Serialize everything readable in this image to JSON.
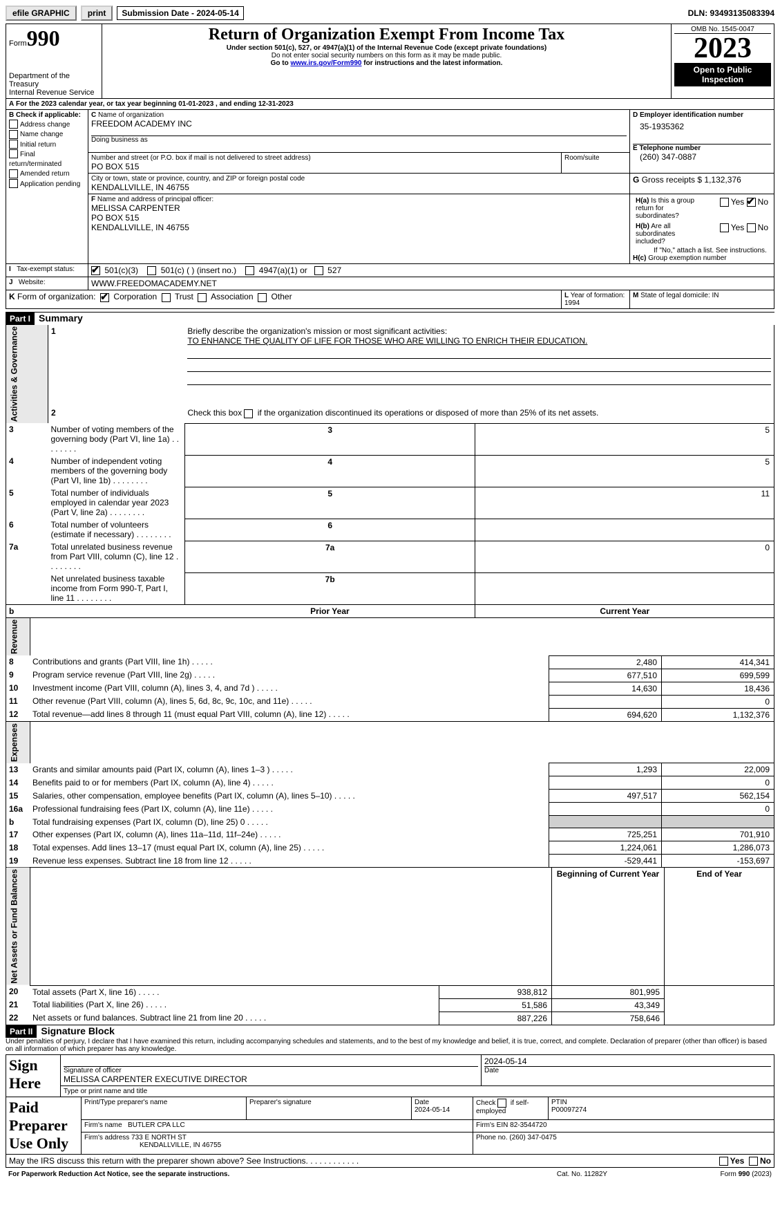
{
  "toolbar": {
    "efile": "efile GRAPHIC",
    "print": "print",
    "subdate_label": "Submission Date - 2024-05-14",
    "dln": "DLN: 93493135083394"
  },
  "header": {
    "form_label": "Form",
    "form_num": "990",
    "dept": "Department of the Treasury\nInternal Revenue Service",
    "title": "Return of Organization Exempt From Income Tax",
    "sub1": "Under section 501(c), 527, or 4947(a)(1) of the Internal Revenue Code (except private foundations)",
    "sub2": "Do not enter social security numbers on this form as it may be made public.",
    "sub3_pre": "Go to ",
    "sub3_link": "www.irs.gov/Form990",
    "sub3_post": " for instructions and the latest information.",
    "omb": "OMB No. 1545-0047",
    "year": "2023",
    "open": "Open to Public Inspection"
  },
  "A": {
    "line": "For the 2023 calendar year, or tax year beginning 01-01-2023    , and ending 12-31-2023"
  },
  "B": {
    "label": "Check if applicable:",
    "opts": [
      "Address change",
      "Name change",
      "Initial return",
      "Final return/terminated",
      "Amended return",
      "Application pending"
    ]
  },
  "C": {
    "name_label": "Name of organization",
    "name": "FREEDOM ACADEMY INC",
    "dba_label": "Doing business as",
    "addr_label": "Number and street (or P.O. box if mail is not delivered to street address)",
    "room_label": "Room/suite",
    "addr": "PO BOX 515",
    "city_label": "City or town, state or province, country, and ZIP or foreign postal code",
    "city": "KENDALLVILLE, IN  46755"
  },
  "D": {
    "label": "Employer identification number",
    "val": "35-1935362"
  },
  "E": {
    "label": "Telephone number",
    "val": "(260) 347-0887"
  },
  "G": {
    "label": "Gross receipts $",
    "val": "1,132,376"
  },
  "F": {
    "label": "Name and address of principal officer:",
    "name": "MELISSA CARPENTER",
    "l1": "PO BOX 515",
    "l2": "KENDALLVILLE, IN   46755"
  },
  "H": {
    "a": "Is this a group return for subordinates?",
    "b": "Are all subordinates included?",
    "b_note": "If \"No,\" attach a list. See instructions.",
    "c": "Group exemption number",
    "yes": "Yes",
    "no": "No"
  },
  "I": {
    "label": "Tax-exempt status:",
    "o1": "501(c)(3)",
    "o2": "501(c) (  ) (insert no.)",
    "o3": "4947(a)(1) or",
    "o4": "527"
  },
  "J": {
    "label": "Website:",
    "val": "WWW.FREEDOMACADEMY.NET"
  },
  "K": {
    "label": "Form of organization:",
    "o1": "Corporation",
    "o2": "Trust",
    "o3": "Association",
    "o4": "Other"
  },
  "L": {
    "label": "Year of formation: 1994"
  },
  "M": {
    "label": "State of legal domicile: IN"
  },
  "part1": {
    "hdr": "Part I",
    "title": "Summary",
    "l1": "Briefly describe the organization's mission or most significant activities:",
    "l1v": "TO ENHANCE THE QUALITY OF LIFE FOR THOSE WHO ARE WILLING TO ENRICH THEIR EDUCATION.",
    "l2": "Check this box         if the organization discontinued its operations or disposed of more than 25% of its net assets.",
    "rows": [
      {
        "n": "3",
        "t": "Number of voting members of the governing body (Part VI, line 1a)",
        "r": "3",
        "v": "5"
      },
      {
        "n": "4",
        "t": "Number of independent voting members of the governing body (Part VI, line 1b)",
        "r": "4",
        "v": "5"
      },
      {
        "n": "5",
        "t": "Total number of individuals employed in calendar year 2023 (Part V, line 2a)",
        "r": "5",
        "v": "11"
      },
      {
        "n": "6",
        "t": "Total number of volunteers (estimate if necessary)",
        "r": "6",
        "v": ""
      },
      {
        "n": "7a",
        "t": "Total unrelated business revenue from Part VIII, column (C), line 12",
        "r": "7a",
        "v": "0"
      },
      {
        "n": "",
        "t": "Net unrelated business taxable income from Form 990-T, Part I, line 11",
        "r": "7b",
        "v": ""
      }
    ],
    "th_prior": "Prior Year",
    "th_curr": "Current Year",
    "rev": [
      {
        "n": "8",
        "t": "Contributions and grants (Part VIII, line 1h)",
        "p": "2,480",
        "c": "414,341"
      },
      {
        "n": "9",
        "t": "Program service revenue (Part VIII, line 2g)",
        "p": "677,510",
        "c": "699,599"
      },
      {
        "n": "10",
        "t": "Investment income (Part VIII, column (A), lines 3, 4, and 7d )",
        "p": "14,630",
        "c": "18,436"
      },
      {
        "n": "11",
        "t": "Other revenue (Part VIII, column (A), lines 5, 6d, 8c, 9c, 10c, and 11e)",
        "p": "",
        "c": "0"
      },
      {
        "n": "12",
        "t": "Total revenue—add lines 8 through 11 (must equal Part VIII, column (A), line 12)",
        "p": "694,620",
        "c": "1,132,376"
      }
    ],
    "exp": [
      {
        "n": "13",
        "t": "Grants and similar amounts paid (Part IX, column (A), lines 1–3 )",
        "p": "1,293",
        "c": "22,009"
      },
      {
        "n": "14",
        "t": "Benefits paid to or for members (Part IX, column (A), line 4)",
        "p": "",
        "c": "0"
      },
      {
        "n": "15",
        "t": "Salaries, other compensation, employee benefits (Part IX, column (A), lines 5–10)",
        "p": "497,517",
        "c": "562,154"
      },
      {
        "n": "16a",
        "t": "Professional fundraising fees (Part IX, column (A), line 11e)",
        "p": "",
        "c": "0"
      },
      {
        "n": "b",
        "t": "Total fundraising expenses (Part IX, column (D), line 25) 0",
        "p": "GREY",
        "c": "GREY"
      },
      {
        "n": "17",
        "t": "Other expenses (Part IX, column (A), lines 11a–11d, 11f–24e)",
        "p": "725,251",
        "c": "701,910"
      },
      {
        "n": "18",
        "t": "Total expenses. Add lines 13–17 (must equal Part IX, column (A), line 25)",
        "p": "1,224,061",
        "c": "1,286,073"
      },
      {
        "n": "19",
        "t": "Revenue less expenses. Subtract line 18 from line 12",
        "p": "-529,441",
        "c": "-153,697"
      }
    ],
    "th_beg": "Beginning of Current Year",
    "th_end": "End of Year",
    "net": [
      {
        "n": "20",
        "t": "Total assets (Part X, line 16)",
        "p": "938,812",
        "c": "801,995"
      },
      {
        "n": "21",
        "t": "Total liabilities (Part X, line 26)",
        "p": "51,586",
        "c": "43,349"
      },
      {
        "n": "22",
        "t": "Net assets or fund balances. Subtract line 21 from line 20",
        "p": "887,226",
        "c": "758,646"
      }
    ],
    "side_ag": "Activities & Governance",
    "side_rev": "Revenue",
    "side_exp": "Expenses",
    "side_net": "Net Assets or Fund Balances"
  },
  "part2": {
    "hdr": "Part II",
    "title": "Signature Block",
    "decl": "Under penalties of perjury, I declare that I have examined this return, including accompanying schedules and statements, and to the best of my knowledge and belief, it is true, correct, and complete. Declaration of preparer (other than officer) is based on all information of which preparer has any knowledge.",
    "sign_here": "Sign Here",
    "sig_label": "Signature of officer",
    "date_label": "Date",
    "sig_date": "2024-05-14",
    "officer": "MELISSA CARPENTER  EXECUTIVE DIRECTOR",
    "type_label": "Type or print name and title",
    "paid": "Paid Preparer Use Only",
    "p_name_label": "Print/Type preparer's name",
    "p_sig_label": "Preparer's signature",
    "p_date_label": "Date",
    "p_date": "2024-05-14",
    "p_check": "Check          if self-employed",
    "ptin_label": "PTIN",
    "ptin": "P00097274",
    "firm_name_label": "Firm's name",
    "firm_name": "BUTLER CPA LLC",
    "firm_ein_label": "Firm's EIN",
    "firm_ein": "82-3544720",
    "firm_addr_label": "Firm's address",
    "firm_addr1": "733 E NORTH ST",
    "firm_addr2": "KENDALLVILLE, IN  46755",
    "phone_label": "Phone no.",
    "phone": "(260) 347-0475",
    "discuss": "May the IRS discuss this return with the preparer shown above? See Instructions."
  },
  "footer": {
    "pra": "For Paperwork Reduction Act Notice, see the separate instructions.",
    "cat": "Cat. No. 11282Y",
    "form": "Form 990 (2023)"
  }
}
